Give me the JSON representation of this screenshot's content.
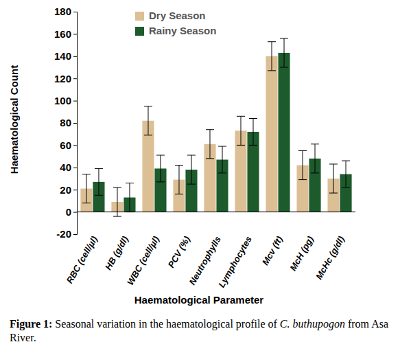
{
  "chart_data": {
    "type": "bar",
    "x_label": "Haematological Parameter",
    "y_label": "Haematological Count",
    "caption": [
      "Figure 1:",
      " Seasonal variation in the haematological profile of ",
      "C. buthupogon",
      " from Asa River."
    ],
    "categories": [
      "RBC (cell/µl)",
      "HB (g/dl)",
      "WBC (cell/µl)",
      "PCV (%)",
      "Neutrophylls",
      "Lymphocytes",
      "Mcv (ft)",
      "McH (pg)",
      "McHc (g/dl)"
    ],
    "series": [
      {
        "name": "Dry Season",
        "color": "#dcbf94",
        "values": [
          21,
          9,
          82,
          29,
          61,
          73,
          140,
          42,
          30
        ],
        "errors": [
          13,
          13,
          13,
          13,
          13,
          13,
          13,
          13,
          13
        ]
      },
      {
        "name": "Rainy Season",
        "color": "#1d5a2c",
        "values": [
          27,
          13,
          39,
          38,
          47,
          72,
          143,
          48,
          34
        ],
        "errors": [
          12,
          13,
          12,
          13,
          12,
          12,
          13,
          13,
          12
        ]
      }
    ],
    "ylim": [
      -20,
      180
    ],
    "yticks": [
      -20,
      0,
      20,
      40,
      60,
      80,
      100,
      120,
      140,
      160,
      180
    ],
    "grid": false,
    "legend": "upper center"
  }
}
